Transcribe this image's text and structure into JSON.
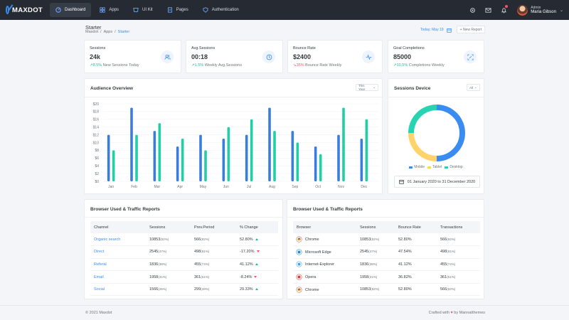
{
  "brand": {
    "name": "MAXDOT"
  },
  "nav": [
    {
      "label": "Dashboard",
      "icon": "dashboard-icon",
      "active": true
    },
    {
      "label": "Apps",
      "icon": "apps-icon"
    },
    {
      "label": "UI Kit",
      "icon": "ui-kit-icon"
    },
    {
      "label": "Pages",
      "icon": "pages-icon"
    },
    {
      "label": "Authentication",
      "icon": "shield-icon"
    }
  ],
  "user": {
    "role": "Admin",
    "name": "Maria Gibson"
  },
  "page": {
    "title": "Starter",
    "breadcrumb": [
      "Maxdot",
      "Apps",
      "Starter"
    ],
    "date_label": "Today: May 19",
    "new_report": "+ New Report"
  },
  "stats": [
    {
      "title": "Sessions",
      "value": "24k",
      "delta": "8.5%",
      "trend": "up",
      "sub": "New Sessions Today",
      "icon": "users-icon"
    },
    {
      "title": "Avg.Sessions",
      "value": "00:18",
      "delta": "1.5%",
      "trend": "up",
      "sub": "Weekly Avg.Sessions",
      "icon": "clock-icon"
    },
    {
      "title": "Bounce Rate",
      "value": "$2400",
      "delta": "35%",
      "trend": "down",
      "sub": "Bounce Rate Weekly",
      "icon": "activity-icon"
    },
    {
      "title": "Goal Completions",
      "value": "85000",
      "delta": "10.5%",
      "trend": "up",
      "sub": "Completions Weekly",
      "icon": "target-icon"
    }
  ],
  "audience": {
    "title": "Audience Overview",
    "filter": "This Year"
  },
  "chart_data": {
    "type": "bar",
    "categories": [
      "Jan",
      "Feb",
      "Mar",
      "Apr",
      "May",
      "Jun",
      "Jul",
      "Aug",
      "Sep",
      "Oct",
      "Nov",
      "Dec"
    ],
    "series": [
      {
        "color": "#3b7ddd",
        "values": [
          12,
          19,
          13,
          9,
          12,
          11,
          12,
          19,
          13,
          9,
          12,
          11
        ]
      },
      {
        "color": "#1fcfa5",
        "values": [
          8,
          12,
          15,
          11,
          8,
          14,
          16,
          13,
          10,
          7,
          19,
          16
        ]
      }
    ],
    "ylim": [
      0,
      20
    ],
    "yticks": [
      "$0",
      "$2",
      "$4",
      "$6",
      "$8",
      "$10",
      "$12",
      "$14",
      "$16",
      "$18",
      "$20"
    ],
    "grid": true
  },
  "device": {
    "title": "Sessions Device",
    "filter": "All",
    "date_range": "01 January 2020 to 31 December 2020",
    "chart_data": {
      "type": "pie",
      "labels": [
        "Mobile",
        "Tablet",
        "Desktop"
      ],
      "values": [
        50,
        25,
        25
      ],
      "colors": [
        "#3b8cf0",
        "#ffd26a",
        "#27d3b0"
      ]
    }
  },
  "traffic": {
    "title": "Browser Used & Traffic Reports",
    "columns": [
      "Channel",
      "Sessions",
      "Prev.Period",
      "% Change"
    ],
    "rows": [
      {
        "channel": "Organic search",
        "sessions": "10853",
        "sessions_pct": "(52%)",
        "prev": "566",
        "prev_pct": "(92%)",
        "change": "52.80%",
        "trend": "up"
      },
      {
        "channel": "Direct",
        "sessions": "2545",
        "sessions_pct": "(47%)",
        "prev": "498",
        "prev_pct": "(81%)",
        "change": "-17.20%",
        "trend": "down"
      },
      {
        "channel": "Referal",
        "sessions": "1836",
        "sessions_pct": "(38%)",
        "prev": "455",
        "prev_pct": "(74%)",
        "change": "41.12%",
        "trend": "up"
      },
      {
        "channel": "Email",
        "sessions": "1958",
        "sessions_pct": "(31%)",
        "prev": "361",
        "prev_pct": "(61%)",
        "change": "-8.24%",
        "trend": "down"
      },
      {
        "channel": "Social",
        "sessions": "1566",
        "sessions_pct": "(26%)",
        "prev": "299",
        "prev_pct": "(49%)",
        "change": "29.33%",
        "trend": "up"
      }
    ]
  },
  "browsers": {
    "title": "Browser Used & Traffic Reports",
    "columns": [
      "Browser",
      "Sessions",
      "Bounce Rate",
      "Transactions"
    ],
    "rows": [
      {
        "browser": "Chrome",
        "icon": "chrome-icon",
        "color": "#e8453c",
        "sessions": "10853",
        "sessions_pct": "(52%)",
        "bounce": "52.80%",
        "trans": "566",
        "trans_pct": "(92%)"
      },
      {
        "browser": "Microsoft Edge",
        "icon": "edge-icon",
        "color": "#1e88e5",
        "sessions": "2545",
        "sessions_pct": "(47%)",
        "bounce": "47.54%",
        "trans": "498",
        "trans_pct": "(81%)"
      },
      {
        "browser": "Internet-Explorer",
        "icon": "ie-icon",
        "color": "#42a5f5",
        "sessions": "1836",
        "sessions_pct": "(38%)",
        "bounce": "41.12%",
        "trans": "455",
        "trans_pct": "(74%)"
      },
      {
        "browser": "Opera",
        "icon": "opera-icon",
        "color": "#e53935",
        "sessions": "1958",
        "sessions_pct": "(31%)",
        "bounce": "36.82%",
        "trans": "361",
        "trans_pct": "(61%)"
      },
      {
        "browser": "Chrome",
        "icon": "chrome-icon",
        "color": "#e8453c",
        "sessions": "10853",
        "sessions_pct": "(52%)",
        "bounce": "52.80%",
        "trans": "566",
        "trans_pct": "(92%)"
      }
    ]
  },
  "footer": {
    "copyright": "© 2021 Maxdot",
    "crafted": "Crafted with",
    "by": "by Mannatthemes",
    "heart": "♥"
  }
}
